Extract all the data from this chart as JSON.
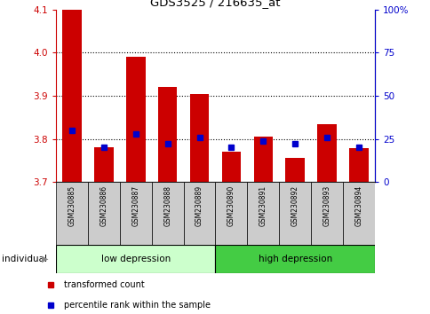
{
  "title": "GDS3525 / 216635_at",
  "samples": [
    "GSM230885",
    "GSM230886",
    "GSM230887",
    "GSM230888",
    "GSM230889",
    "GSM230890",
    "GSM230891",
    "GSM230892",
    "GSM230893",
    "GSM230894"
  ],
  "transformed_count": [
    4.1,
    3.78,
    3.99,
    3.92,
    3.905,
    3.77,
    3.805,
    3.757,
    3.835,
    3.778
  ],
  "percentile_rank": [
    30,
    20,
    28,
    22,
    26,
    20,
    24,
    22,
    26,
    20
  ],
  "ylim_left": [
    3.7,
    4.1
  ],
  "ylim_right": [
    0,
    100
  ],
  "yticks_left": [
    3.7,
    3.8,
    3.9,
    4.0,
    4.1
  ],
  "yticks_right": [
    0,
    25,
    50,
    75,
    100
  ],
  "ytick_right_labels": [
    "0",
    "25",
    "50",
    "75",
    "100%"
  ],
  "bar_color": "#cc0000",
  "dot_color": "#0000cc",
  "bar_width": 0.6,
  "groups": [
    {
      "label": "low depression",
      "start": 0,
      "end": 5,
      "color": "#ccffcc"
    },
    {
      "label": "high depression",
      "start": 5,
      "end": 10,
      "color": "#44cc44"
    }
  ],
  "sample_row_color": "#cccccc",
  "legend_items": [
    {
      "label": "transformed count",
      "color": "#cc0000"
    },
    {
      "label": "percentile rank within the sample",
      "color": "#0000cc"
    }
  ],
  "individual_label": "individual",
  "background_color": "#ffffff",
  "base_value": 3.7
}
